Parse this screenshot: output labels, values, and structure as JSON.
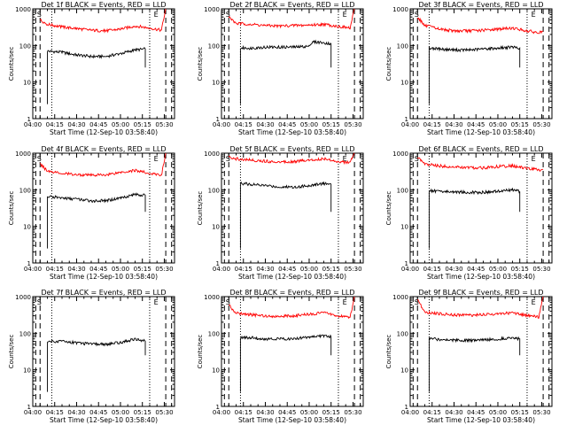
{
  "figure": {
    "xlabel": "Start Time (12-Sep-10 03:58:40)",
    "ylabel": "Counts/sec",
    "x_ticks": [
      "04:00",
      "04:15",
      "04:30",
      "04:45",
      "05:00",
      "05:15",
      "05:30"
    ],
    "y_ticks": [
      "1",
      "10",
      "100",
      "1000"
    ],
    "markers": [
      "S",
      "E"
    ],
    "colors": {
      "events": "#000000",
      "lld": "#ff0000",
      "axes": "#000000"
    }
  },
  "chart_data": [
    {
      "type": "line",
      "title": "Det 1f BLACK = Events, RED = LLD",
      "yscale": "log",
      "ylim": [
        1,
        1000
      ],
      "xlim": [
        "04:00",
        "05:37"
      ],
      "markers": {
        "S": "04:05",
        "E": "05:25"
      },
      "dashed_lines": [
        "04:02",
        "04:05",
        "05:31",
        "05:35"
      ],
      "dotted_lines": [
        "04:13",
        "05:20"
      ],
      "series": [
        {
          "name": "Events",
          "x": [
            "04:10",
            "04:20",
            "04:30",
            "04:40",
            "04:50",
            "05:00",
            "05:10",
            "05:17"
          ],
          "y": [
            70,
            65,
            55,
            50,
            50,
            60,
            75,
            80
          ]
        },
        {
          "name": "LLD",
          "x": [
            "04:05",
            "04:10",
            "04:20",
            "04:30",
            "04:40",
            "04:50",
            "05:00",
            "05:10",
            "05:20",
            "05:28",
            "05:31"
          ],
          "y": [
            500,
            380,
            320,
            290,
            260,
            250,
            280,
            340,
            300,
            260,
            1000
          ]
        }
      ]
    },
    {
      "type": "line",
      "title": "Det 2f BLACK = Events, RED = LLD",
      "yscale": "log",
      "ylim": [
        1,
        1000
      ],
      "xlim": [
        "04:00",
        "05:37"
      ],
      "markers": {
        "S": "04:05",
        "E": "05:25"
      },
      "dashed_lines": [
        "04:02",
        "04:05",
        "05:31",
        "05:35"
      ],
      "dotted_lines": [
        "04:13",
        "05:20"
      ],
      "series": [
        {
          "name": "Events",
          "x": [
            "04:13",
            "04:20",
            "04:30",
            "04:40",
            "04:50",
            "05:00",
            "05:03",
            "05:10",
            "05:15"
          ],
          "y": [
            85,
            85,
            90,
            90,
            90,
            95,
            125,
            120,
            110
          ]
        },
        {
          "name": "LLD",
          "x": [
            "04:05",
            "04:10",
            "04:20",
            "04:30",
            "04:40",
            "04:50",
            "05:00",
            "05:10",
            "05:20",
            "05:28",
            "05:31"
          ],
          "y": [
            600,
            400,
            380,
            350,
            340,
            350,
            360,
            380,
            330,
            300,
            1000
          ]
        }
      ]
    },
    {
      "type": "line",
      "title": "Det 3f BLACK = Events, RED = LLD",
      "yscale": "log",
      "ylim": [
        1,
        1000
      ],
      "xlim": [
        "04:00",
        "05:37"
      ],
      "markers": {
        "S": "04:05",
        "E": "05:25"
      },
      "dashed_lines": [
        "04:02",
        "04:05",
        "05:31",
        "05:35"
      ],
      "dotted_lines": [
        "04:13",
        "05:20"
      ],
      "series": [
        {
          "name": "Events",
          "x": [
            "04:13",
            "04:20",
            "04:30",
            "04:40",
            "04:50",
            "05:00",
            "05:10",
            "05:15"
          ],
          "y": [
            85,
            80,
            75,
            75,
            80,
            85,
            90,
            85
          ]
        },
        {
          "name": "LLD",
          "x": [
            "04:05",
            "04:10",
            "04:20",
            "04:30",
            "04:40",
            "04:50",
            "05:00",
            "05:10",
            "05:20",
            "05:28",
            "05:31"
          ],
          "y": [
            600,
            350,
            280,
            250,
            250,
            260,
            280,
            300,
            250,
            220,
            250
          ]
        }
      ]
    },
    {
      "type": "line",
      "title": "Det 4f BLACK = Events, RED = LLD",
      "yscale": "log",
      "ylim": [
        1,
        1000
      ],
      "xlim": [
        "04:00",
        "05:37"
      ],
      "markers": {
        "S": "04:05",
        "E": "05:25"
      },
      "dashed_lines": [
        "04:02",
        "04:05",
        "05:31",
        "05:35"
      ],
      "dotted_lines": [
        "04:13",
        "05:20"
      ],
      "series": [
        {
          "name": "Events",
          "x": [
            "04:10",
            "04:20",
            "04:30",
            "04:40",
            "04:50",
            "05:00",
            "05:10",
            "05:17"
          ],
          "y": [
            65,
            60,
            55,
            50,
            50,
            60,
            75,
            70
          ]
        },
        {
          "name": "LLD",
          "x": [
            "04:05",
            "04:10",
            "04:20",
            "04:30",
            "04:40",
            "04:50",
            "05:00",
            "05:10",
            "05:20",
            "05:28",
            "05:31"
          ],
          "y": [
            500,
            330,
            280,
            260,
            250,
            260,
            300,
            340,
            280,
            250,
            1000
          ]
        }
      ]
    },
    {
      "type": "line",
      "title": "Det 5f BLACK = Events, RED = LLD",
      "yscale": "log",
      "ylim": [
        1,
        1000
      ],
      "xlim": [
        "04:00",
        "05:37"
      ],
      "markers": {
        "S": "04:05",
        "E": "05:25"
      },
      "dashed_lines": [
        "04:02",
        "04:05",
        "05:31",
        "05:35"
      ],
      "dotted_lines": [
        "04:13",
        "05:20"
      ],
      "series": [
        {
          "name": "Events",
          "x": [
            "04:13",
            "04:20",
            "04:30",
            "04:40",
            "04:50",
            "05:00",
            "05:10",
            "05:15"
          ],
          "y": [
            150,
            140,
            130,
            120,
            120,
            130,
            150,
            140
          ]
        },
        {
          "name": "LLD",
          "x": [
            "04:05",
            "04:10",
            "04:20",
            "04:30",
            "04:40",
            "04:50",
            "05:00",
            "05:10",
            "05:20",
            "05:28",
            "05:31"
          ],
          "y": [
            800,
            700,
            650,
            600,
            580,
            600,
            650,
            700,
            600,
            550,
            1000
          ]
        }
      ]
    },
    {
      "type": "line",
      "title": "Det 6f BLACK = Events, RED = LLD",
      "yscale": "log",
      "ylim": [
        1,
        1000
      ],
      "xlim": [
        "04:00",
        "05:37"
      ],
      "markers": {
        "S": "04:05",
        "E": "05:25"
      },
      "dashed_lines": [
        "04:02",
        "04:05",
        "05:31",
        "05:35"
      ],
      "dotted_lines": [
        "04:13",
        "05:20"
      ],
      "series": [
        {
          "name": "Events",
          "x": [
            "04:13",
            "04:20",
            "04:30",
            "04:40",
            "04:50",
            "05:00",
            "05:10",
            "05:15"
          ],
          "y": [
            95,
            90,
            88,
            85,
            85,
            90,
            100,
            90
          ]
        },
        {
          "name": "LLD",
          "x": [
            "04:05",
            "04:10",
            "04:20",
            "04:30",
            "04:40",
            "04:50",
            "05:00",
            "05:10",
            "05:20",
            "05:28",
            "05:31"
          ],
          "y": [
            800,
            500,
            450,
            420,
            400,
            400,
            430,
            450,
            380,
            350,
            360
          ]
        }
      ]
    },
    {
      "type": "line",
      "title": "Det 7f BLACK = Events, RED = LLD",
      "yscale": "log",
      "ylim": [
        1,
        1000
      ],
      "xlim": [
        "04:00",
        "05:37"
      ],
      "markers": {
        "S": "04:05",
        "E": "05:25"
      },
      "dashed_lines": [
        "04:02",
        "04:05",
        "05:31",
        "05:35"
      ],
      "dotted_lines": [
        "04:13",
        "05:20"
      ],
      "series": [
        {
          "name": "Events",
          "x": [
            "04:10",
            "04:20",
            "04:30",
            "04:40",
            "04:50",
            "05:00",
            "05:10",
            "05:17"
          ],
          "y": [
            60,
            60,
            55,
            50,
            50,
            55,
            70,
            60
          ]
        }
      ]
    },
    {
      "type": "line",
      "title": "Det 8f BLACK = Events, RED = LLD",
      "yscale": "log",
      "ylim": [
        1,
        1000
      ],
      "xlim": [
        "04:00",
        "05:37"
      ],
      "markers": {
        "S": "04:05",
        "E": "05:25"
      },
      "dashed_lines": [
        "04:02",
        "04:05",
        "05:31",
        "05:35"
      ],
      "dotted_lines": [
        "04:13",
        "05:20"
      ],
      "series": [
        {
          "name": "Events",
          "x": [
            "04:13",
            "04:20",
            "04:30",
            "04:40",
            "04:50",
            "05:00",
            "05:10",
            "05:15"
          ],
          "y": [
            75,
            75,
            70,
            70,
            70,
            80,
            85,
            80
          ]
        },
        {
          "name": "LLD",
          "x": [
            "04:05",
            "04:10",
            "04:20",
            "04:30",
            "04:40",
            "04:50",
            "05:00",
            "05:10",
            "05:20",
            "05:28",
            "05:31"
          ],
          "y": [
            600,
            350,
            320,
            300,
            290,
            300,
            330,
            360,
            300,
            270,
            1000
          ]
        }
      ]
    },
    {
      "type": "line",
      "title": "Det 9f BLACK = Events, RED = LLD",
      "yscale": "log",
      "ylim": [
        1,
        1000
      ],
      "xlim": [
        "04:00",
        "05:37"
      ],
      "markers": {
        "S": "04:05",
        "E": "05:25"
      },
      "dashed_lines": [
        "04:02",
        "04:05",
        "05:31",
        "05:35"
      ],
      "dotted_lines": [
        "04:13",
        "05:20"
      ],
      "series": [
        {
          "name": "Events",
          "x": [
            "04:13",
            "04:20",
            "04:30",
            "04:40",
            "04:50",
            "05:00",
            "05:10",
            "05:15"
          ],
          "y": [
            70,
            68,
            65,
            63,
            65,
            70,
            75,
            70
          ]
        },
        {
          "name": "LLD",
          "x": [
            "04:05",
            "04:10",
            "04:20",
            "04:30",
            "04:40",
            "04:50",
            "05:00",
            "05:10",
            "05:20",
            "05:28",
            "05:31"
          ],
          "y": [
            800,
            380,
            340,
            320,
            310,
            320,
            340,
            360,
            300,
            280,
            1000
          ]
        }
      ]
    }
  ]
}
